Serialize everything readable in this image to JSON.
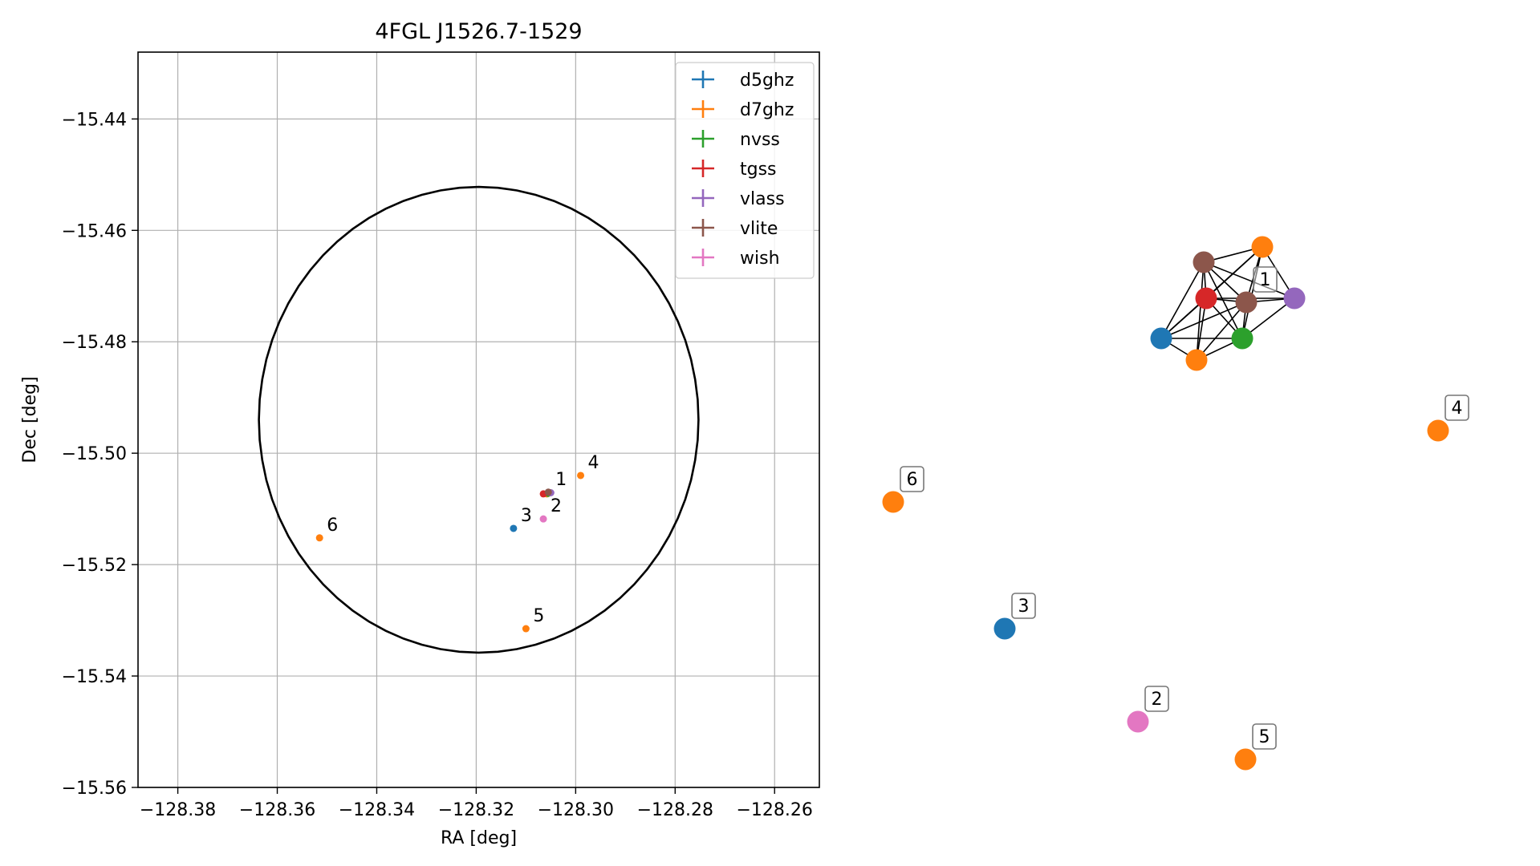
{
  "chart_data": [
    {
      "type": "scatter",
      "title": "4FGL J1526.7-1529",
      "xlabel": "RA [deg]",
      "ylabel": "Dec [deg]",
      "xlim": [
        -128.388,
        -128.251
      ],
      "ylim": [
        -15.56,
        -15.428
      ],
      "x_ticks": [
        -128.38,
        -128.36,
        -128.34,
        -128.32,
        -128.3,
        -128.28,
        -128.26
      ],
      "x_tick_labels": [
        "−128.38",
        "−128.36",
        "−128.34",
        "−128.32",
        "−128.30",
        "−128.28",
        "−128.26"
      ],
      "y_ticks": [
        -15.44,
        -15.46,
        -15.48,
        -15.5,
        -15.52,
        -15.54,
        -15.56
      ],
      "y_tick_labels": [
        "−15.44",
        "−15.46",
        "−15.48",
        "−15.50",
        "−15.52",
        "−15.54",
        "−15.56"
      ],
      "grid": true,
      "legend_position": "top-right",
      "ellipse": {
        "center_ra": -128.3195,
        "center_dec": -15.494,
        "ra_radius": 0.0442,
        "dec_radius": 0.0418
      },
      "series": [
        {
          "name": "d5ghz",
          "color": "#1f77b4",
          "points": [
            {
              "x": -128.3125,
              "y": -15.5135,
              "label": "3"
            }
          ]
        },
        {
          "name": "d7ghz",
          "color": "#ff7f0e",
          "points": [
            {
              "x": -128.299,
              "y": -15.504,
              "label": "4"
            },
            {
              "x": -128.31,
              "y": -15.5315,
              "label": "5"
            },
            {
              "x": -128.3515,
              "y": -15.5152,
              "label": "6"
            },
            {
              "x": -128.3058,
              "y": -15.5073,
              "label": ""
            }
          ]
        },
        {
          "name": "nvss",
          "color": "#2ca02c",
          "points": [
            {
              "x": -128.3055,
              "y": -15.5072,
              "label": ""
            }
          ]
        },
        {
          "name": "tgss",
          "color": "#d62728",
          "points": [
            {
              "x": -128.3065,
              "y": -15.5073,
              "label": ""
            }
          ]
        },
        {
          "name": "vlass",
          "color": "#9467bd",
          "points": [
            {
              "x": -128.305,
              "y": -15.5071,
              "label": ""
            }
          ]
        },
        {
          "name": "vlite",
          "color": "#8c564b",
          "points": [
            {
              "x": -128.3055,
              "y": -15.507,
              "label": "1"
            }
          ]
        },
        {
          "name": "wish",
          "color": "#e377c2",
          "points": [
            {
              "x": -128.3065,
              "y": -15.5118,
              "label": "2"
            }
          ]
        }
      ]
    },
    {
      "type": "network",
      "nodes": [
        {
          "id": "n_d5ghz_cluster",
          "series": "d5ghz",
          "color": "#1f77b4",
          "label": ""
        },
        {
          "id": "n_d7ghz_low",
          "series": "d7ghz",
          "color": "#ff7f0e",
          "label": ""
        },
        {
          "id": "n_d7ghz_high",
          "series": "d7ghz",
          "color": "#ff7f0e",
          "label": ""
        },
        {
          "id": "n_vlite_top",
          "series": "vlite",
          "color": "#8c564b",
          "label": ""
        },
        {
          "id": "n_tgss",
          "series": "tgss",
          "color": "#d62728",
          "label": ""
        },
        {
          "id": "n_vlite_1",
          "series": "vlite",
          "color": "#8c564b",
          "label": "1"
        },
        {
          "id": "n_vlass",
          "series": "vlass",
          "color": "#9467bd",
          "label": ""
        },
        {
          "id": "n_nvss",
          "series": "nvss",
          "color": "#2ca02c",
          "label": ""
        },
        {
          "id": "n_d7ghz_4",
          "series": "d7ghz",
          "color": "#ff7f0e",
          "label": "4"
        },
        {
          "id": "n_d7ghz_6",
          "series": "d7ghz",
          "color": "#ff7f0e",
          "label": "6"
        },
        {
          "id": "n_d5ghz_3",
          "series": "d5ghz",
          "color": "#1f77b4",
          "label": "3"
        },
        {
          "id": "n_wish_2",
          "series": "wish",
          "color": "#e377c2",
          "label": "2"
        },
        {
          "id": "n_d7ghz_5",
          "series": "d7ghz",
          "color": "#ff7f0e",
          "label": "5"
        }
      ],
      "edges": [
        [
          "n_d5ghz_cluster",
          "n_vlite_top"
        ],
        [
          "n_d5ghz_cluster",
          "n_tgss"
        ],
        [
          "n_d5ghz_cluster",
          "n_vlite_1"
        ],
        [
          "n_d5ghz_cluster",
          "n_nvss"
        ],
        [
          "n_d5ghz_cluster",
          "n_d7ghz_low"
        ],
        [
          "n_d5ghz_cluster",
          "n_d7ghz_high"
        ],
        [
          "n_vlite_top",
          "n_d7ghz_high"
        ],
        [
          "n_vlite_top",
          "n_tgss"
        ],
        [
          "n_vlite_top",
          "n_vlite_1"
        ],
        [
          "n_vlite_top",
          "n_nvss"
        ],
        [
          "n_vlite_top",
          "n_d7ghz_low"
        ],
        [
          "n_vlite_top",
          "n_vlass"
        ],
        [
          "n_d7ghz_high",
          "n_tgss"
        ],
        [
          "n_d7ghz_high",
          "n_vlite_1"
        ],
        [
          "n_d7ghz_high",
          "n_vlass"
        ],
        [
          "n_d7ghz_high",
          "n_nvss"
        ],
        [
          "n_tgss",
          "n_vlite_1"
        ],
        [
          "n_tgss",
          "n_vlass"
        ],
        [
          "n_tgss",
          "n_nvss"
        ],
        [
          "n_tgss",
          "n_d7ghz_low"
        ],
        [
          "n_vlite_1",
          "n_vlass"
        ],
        [
          "n_vlite_1",
          "n_nvss"
        ],
        [
          "n_vlite_1",
          "n_d7ghz_low"
        ],
        [
          "n_vlass",
          "n_nvss"
        ],
        [
          "n_nvss",
          "n_d7ghz_low"
        ]
      ]
    }
  ]
}
